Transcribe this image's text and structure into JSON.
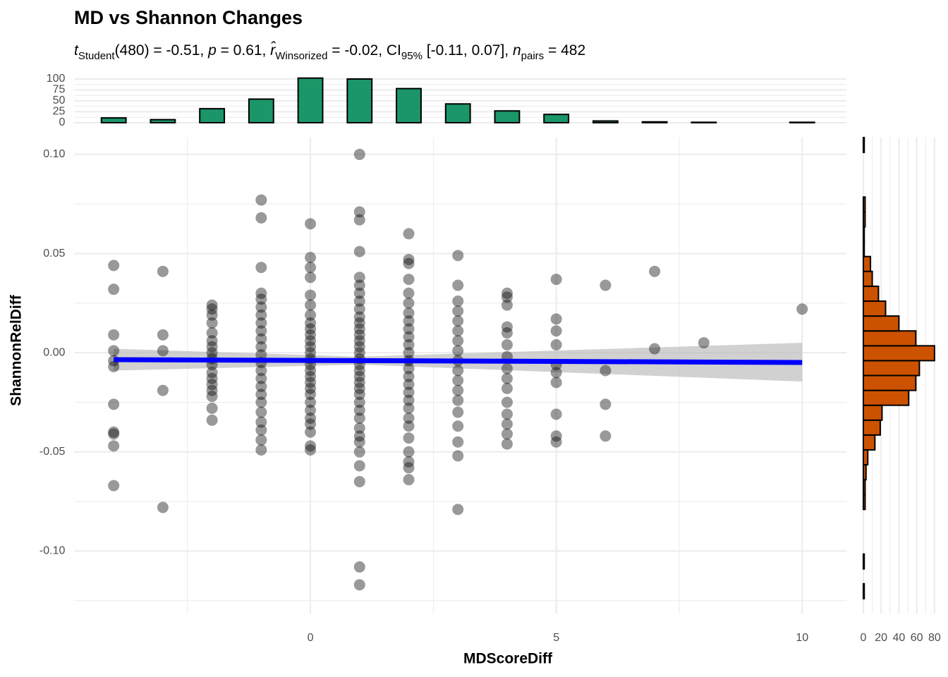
{
  "chart_data": [
    {
      "type": "scatter",
      "title": "MD vs Shannon Changes",
      "subtitle": [
        {
          "text": "t",
          "style": "italic"
        },
        {
          "text": "Student",
          "style": "sub"
        },
        {
          "text": "(480) = -0.51, ",
          "style": "normal"
        },
        {
          "text": "p",
          "style": "italic"
        },
        {
          "text": " = 0.61, ",
          "style": "normal"
        },
        {
          "text": "r̂",
          "style": "italic"
        },
        {
          "text": "Winsorized",
          "style": "sub"
        },
        {
          "text": " = -0.02, CI",
          "style": "normal"
        },
        {
          "text": "95%",
          "style": "sub"
        },
        {
          "text": " [-0.11, 0.07], ",
          "style": "normal"
        },
        {
          "text": "n",
          "style": "italic"
        },
        {
          "text": "pairs",
          "style": "sub"
        },
        {
          "text": " = 482",
          "style": "normal"
        }
      ],
      "x_label": "MDScoreDiff",
      "y_label": "ShannonRelDiff",
      "points": [
        {
          "x": -4,
          "y": [
            0.044,
            0.032,
            0.009,
            0.001,
            -0.004,
            -0.007,
            -0.026,
            -0.04,
            -0.041,
            -0.047,
            -0.067
          ]
        },
        {
          "x": -3,
          "y": [
            0.041,
            0.009,
            0.001,
            -0.019,
            -0.078
          ]
        },
        {
          "x": -2,
          "y": [
            0.024,
            0.022,
            0.019,
            0.015,
            0.01,
            0.006,
            0.003,
            0.0,
            -0.003,
            -0.006,
            -0.01,
            -0.013,
            -0.016,
            -0.019,
            -0.022,
            -0.028,
            -0.034
          ]
        },
        {
          "x": -1,
          "y": [
            0.077,
            0.068,
            0.043,
            0.03,
            0.027,
            0.023,
            0.019,
            0.015,
            0.011,
            0.007,
            0.003,
            -0.001,
            -0.005,
            -0.009,
            -0.013,
            -0.017,
            -0.021,
            -0.025,
            -0.03,
            -0.035,
            -0.039,
            -0.044,
            -0.049
          ]
        },
        {
          "x": 0,
          "y": [
            0.065,
            0.048,
            0.043,
            0.038,
            0.029,
            0.024,
            0.019,
            0.015,
            0.012,
            0.009,
            0.006,
            0.003,
            0.0,
            -0.003,
            -0.006,
            -0.009,
            -0.012,
            -0.015,
            -0.018,
            -0.021,
            -0.025,
            -0.029,
            -0.033,
            -0.036,
            -0.04,
            -0.047,
            -0.049
          ]
        },
        {
          "x": 1,
          "y": [
            0.1,
            0.071,
            0.067,
            0.051,
            0.038,
            0.034,
            0.03,
            0.026,
            0.022,
            0.018,
            0.015,
            0.012,
            0.009,
            0.006,
            0.003,
            0.0,
            -0.003,
            -0.006,
            -0.009,
            -0.012,
            -0.015,
            -0.018,
            -0.021,
            -0.025,
            -0.029,
            -0.033,
            -0.038,
            -0.042,
            -0.045,
            -0.05,
            -0.057,
            -0.065,
            -0.108,
            -0.117
          ]
        },
        {
          "x": 2,
          "y": [
            0.06,
            0.047,
            0.045,
            0.037,
            0.03,
            0.025,
            0.02,
            0.016,
            0.012,
            0.008,
            0.004,
            0.0,
            -0.004,
            -0.008,
            -0.012,
            -0.016,
            -0.02,
            -0.024,
            -0.028,
            -0.033,
            -0.037,
            -0.043,
            -0.05,
            -0.055,
            -0.058,
            -0.064
          ]
        },
        {
          "x": 3,
          "y": [
            0.049,
            0.034,
            0.026,
            0.021,
            0.016,
            0.011,
            0.006,
            0.001,
            -0.004,
            -0.009,
            -0.014,
            -0.019,
            -0.024,
            -0.03,
            -0.037,
            -0.045,
            -0.052,
            -0.079
          ]
        },
        {
          "x": 4,
          "y": [
            0.03,
            0.028,
            0.024,
            0.013,
            0.01,
            0.004,
            -0.002,
            -0.008,
            -0.013,
            -0.018,
            -0.025,
            -0.031,
            -0.036,
            -0.041,
            -0.046
          ]
        },
        {
          "x": 5,
          "y": [
            0.037,
            0.017,
            0.011,
            0.004,
            -0.006,
            -0.01,
            -0.015,
            -0.031,
            -0.042,
            -0.045
          ]
        },
        {
          "x": 6,
          "y": [
            0.034,
            -0.009,
            -0.026,
            -0.042
          ]
        },
        {
          "x": 7,
          "y": [
            0.041,
            0.002
          ]
        },
        {
          "x": 8,
          "y": [
            0.005
          ]
        },
        {
          "x": 10,
          "y": [
            0.022
          ]
        }
      ],
      "color": "#000000",
      "alpha": 0.4,
      "fit": {
        "x": [
          -4,
          1,
          10
        ],
        "y": [
          -0.0035,
          -0.004,
          -0.0049
        ],
        "ci_upper": [
          0.002,
          -0.002,
          0.005
        ],
        "ci_lower": [
          -0.009,
          -0.006,
          -0.0145
        ],
        "color": "#0000ff",
        "band_color": "#bebebe"
      },
      "xlim": [
        -4.8,
        10.9
      ],
      "xticks": [
        0,
        5,
        10
      ],
      "xminor": [
        -2.5,
        2.5,
        7.5
      ],
      "ylim": [
        -0.1315,
        0.1085
      ],
      "yticks": [
        {
          "value": -0.1,
          "label": "-0.10"
        },
        {
          "value": -0.05,
          "label": "-0.05"
        },
        {
          "value": 0,
          "label": "0.00"
        },
        {
          "value": 0.05,
          "label": "0.05"
        },
        {
          "value": 0.1,
          "label": "0.10"
        }
      ],
      "yminor": [
        -0.125,
        -0.075,
        -0.025,
        0.025,
        0.075
      ],
      "grid": true
    },
    {
      "type": "bar",
      "x": [
        -4,
        -3,
        -2,
        -1,
        0,
        1,
        2,
        3,
        4,
        5,
        6,
        7,
        8,
        9,
        10
      ],
      "values": [
        11,
        7,
        32,
        54,
        102,
        100,
        78,
        43,
        27,
        19,
        4,
        2,
        1,
        0,
        1
      ],
      "color": "#1b9668",
      "xlim": [
        -4.8,
        10.9
      ],
      "ylim": [
        0,
        104
      ],
      "yticks": [
        0,
        25,
        50,
        75,
        100
      ],
      "yminor": [
        12.5,
        37.5,
        62.5,
        87.5
      ],
      "grid": true
    },
    {
      "type": "histogram",
      "orientation": "horizontal",
      "bins": [
        -0.1315,
        -0.124,
        -0.1165,
        -0.109,
        -0.1015,
        -0.094,
        -0.0865,
        -0.079,
        -0.0715,
        -0.064,
        -0.0565,
        -0.049,
        -0.0415,
        -0.034,
        -0.0265,
        -0.019,
        -0.0115,
        -0.004,
        0.0035,
        0.011,
        0.0185,
        0.026,
        0.0335,
        0.041,
        0.0485,
        0.056,
        0.0635,
        0.071,
        0.0785,
        0.086,
        0.0935,
        0.101,
        0.1085
      ],
      "values": [
        0,
        1,
        0,
        1,
        0,
        0,
        0,
        2,
        2,
        3,
        5,
        13,
        19,
        21,
        51,
        59,
        63,
        80,
        59,
        40,
        25,
        17,
        10,
        8,
        1,
        1,
        2,
        2,
        0,
        0,
        0,
        1
      ],
      "color": "#cc5200",
      "xlim": [
        -6,
        92
      ],
      "xticks": [
        0,
        20,
        40,
        60,
        80
      ],
      "xminor": [
        10,
        30,
        50,
        70
      ],
      "ylim": [
        -0.1315,
        0.1085
      ],
      "grid": true
    }
  ]
}
